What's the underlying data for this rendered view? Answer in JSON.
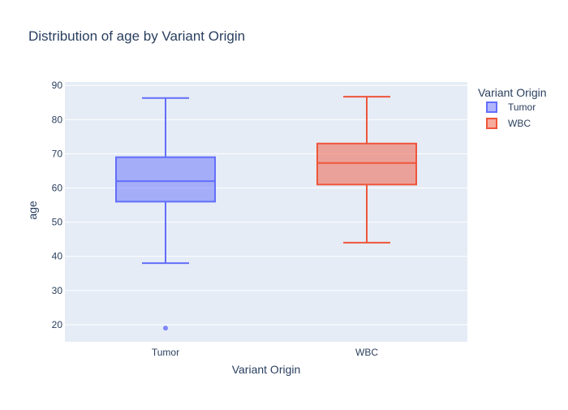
{
  "chart_data": {
    "type": "box",
    "title": "Distribution of age by Variant Origin",
    "xlabel": "Variant Origin",
    "ylabel": "age",
    "ylim": [
      15,
      91
    ],
    "yticks": [
      20,
      30,
      40,
      50,
      60,
      70,
      80,
      90
    ],
    "grid": true,
    "legend": {
      "title": "Variant Origin",
      "placement": "top-right"
    },
    "categories": [
      "Tumor",
      "WBC"
    ],
    "series": [
      {
        "name": "Tumor",
        "color": "#636efa",
        "fill": "rgba(99,110,250,0.5)",
        "min": 38,
        "q1": 56,
        "median": 62,
        "q3": 69,
        "max": 86.3,
        "outliers": [
          19
        ]
      },
      {
        "name": "WBC",
        "color": "#ef553b",
        "fill": "rgba(239,85,59,0.5)",
        "min": 44,
        "q1": 61,
        "median": 67.3,
        "q3": 73,
        "max": 86.7,
        "outliers": []
      }
    ],
    "plot_background": "#e5ecf6",
    "gridline_color": "#ffffff"
  }
}
